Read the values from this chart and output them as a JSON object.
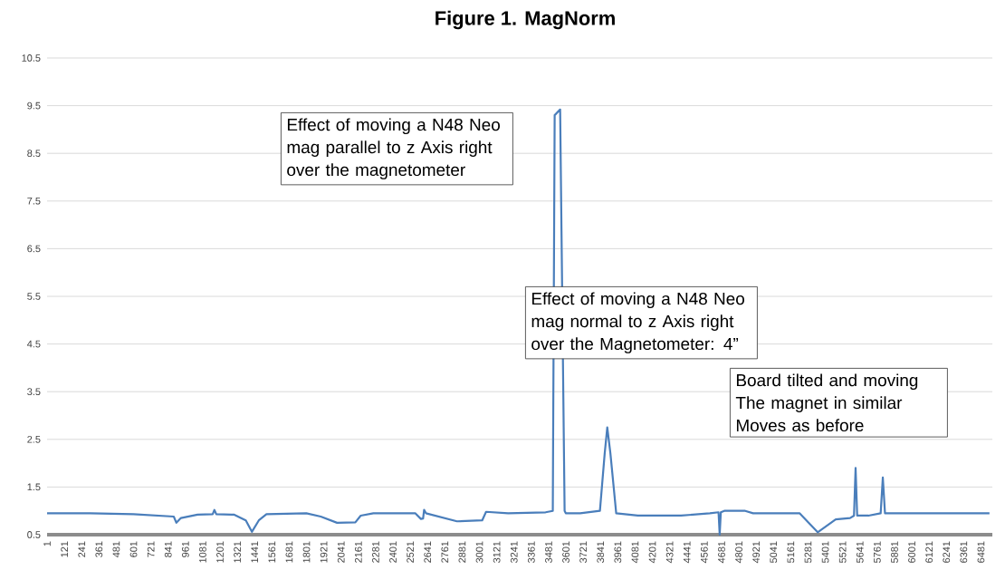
{
  "chart_data": {
    "type": "line",
    "title": "Figure 1. MagNorm",
    "xlim": [
      1,
      6560
    ],
    "xticks": [
      1,
      121,
      241,
      361,
      481,
      601,
      721,
      841,
      961,
      1081,
      1201,
      1321,
      1441,
      1561,
      1681,
      1801,
      1921,
      2041,
      2161,
      2281,
      2401,
      2521,
      2641,
      2761,
      2881,
      3001,
      3121,
      3241,
      3361,
      3481,
      3601,
      3721,
      3841,
      3961,
      4081,
      4201,
      4321,
      4441,
      4561,
      4681,
      4801,
      4921,
      5041,
      5161,
      5281,
      5401,
      5521,
      5641,
      5761,
      5881,
      6001,
      6121,
      6241,
      6361,
      6481
    ],
    "ylim": [
      0.5,
      10.5
    ],
    "yticks": [
      0.5,
      1.5,
      2.5,
      3.5,
      4.5,
      5.5,
      6.5,
      7.5,
      8.5,
      9.5,
      10.5
    ],
    "grid": "y",
    "series": [
      {
        "color": "#4a7ebb",
        "x": [
          1,
          300,
          600,
          880,
          898,
          930,
          1045,
          1150,
          1162,
          1175,
          1300,
          1380,
          1422,
          1470,
          1523,
          1800,
          1900,
          2013,
          2140,
          2177,
          2265,
          2555,
          2595,
          2610,
          2617,
          2630,
          2845,
          3020,
          3047,
          3200,
          3460,
          3510,
          3523,
          3561,
          3592,
          3600,
          3700,
          3837,
          3870,
          3888,
          3910,
          3950,
          4100,
          4400,
          4600,
          4660,
          4668,
          4676,
          4700,
          4845,
          4900,
          5222,
          5348,
          5473,
          5573,
          5600,
          5611,
          5622,
          5700,
          5785,
          5800,
          5815,
          5900,
          6200,
          6540
        ],
        "values": [
          0.95,
          0.95,
          0.93,
          0.88,
          0.75,
          0.85,
          0.92,
          0.93,
          1.02,
          0.93,
          0.92,
          0.8,
          0.56,
          0.8,
          0.93,
          0.95,
          0.88,
          0.75,
          0.76,
          0.9,
          0.95,
          0.95,
          0.83,
          0.84,
          1.02,
          0.95,
          0.78,
          0.8,
          0.98,
          0.95,
          0.97,
          1.0,
          9.3,
          9.42,
          1.0,
          0.95,
          0.95,
          1.0,
          2.2,
          2.75,
          2.2,
          0.95,
          0.9,
          0.9,
          0.95,
          0.97,
          0.5,
          0.97,
          1.0,
          1.0,
          0.95,
          0.95,
          0.55,
          0.82,
          0.85,
          0.9,
          1.9,
          0.9,
          0.9,
          0.95,
          1.7,
          0.95,
          0.95,
          0.95,
          0.95
        ]
      }
    ],
    "annotations": [
      "Effect of moving a N48 Neo mag parallel to z Axis right over the magnetometer",
      "Effect of moving a N48 Neo mag normal to z Axis right over the Magnetometer: 4”",
      "Board tilted and moving The magnet in similar Moves as before"
    ]
  }
}
